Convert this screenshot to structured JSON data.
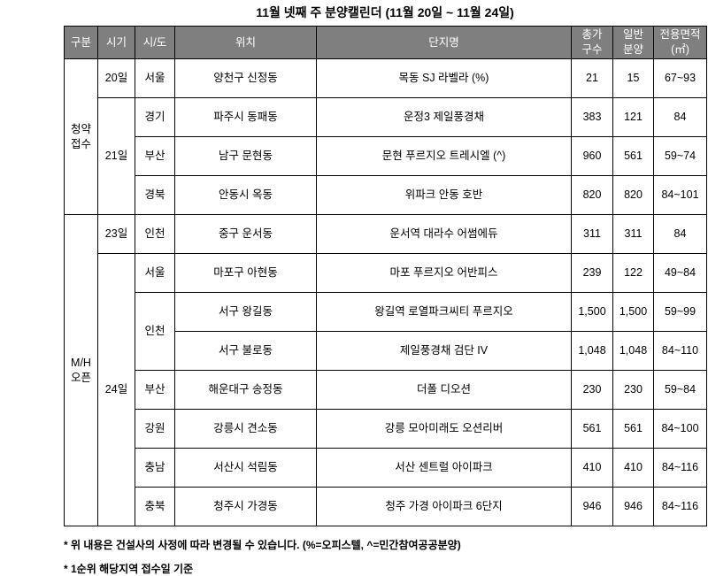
{
  "title": "11월 넷째 주 분양캘린더 (11월 20일 ~ 11월 24일)",
  "colors": {
    "header_bg": "#7f7f7f",
    "header_text": "#ffffff",
    "border": "#000000"
  },
  "table": {
    "headers": [
      "구분",
      "시기",
      "시/도",
      "위치",
      "단지명",
      "총가\n구수",
      "일반\n분양",
      "전용면적\n(㎡)"
    ],
    "rows": [
      [
        {
          "text": "청약\n접수",
          "rowspan": 4,
          "name": "group-cell-subscription"
        },
        {
          "text": "20일",
          "rowspan": 1,
          "name": "date-cell"
        },
        {
          "text": "서울"
        },
        {
          "text": "양천구 신정동"
        },
        {
          "text": "목동 SJ 라벨라 (%)"
        },
        {
          "text": "21"
        },
        {
          "text": "15"
        },
        {
          "text": "67~93"
        }
      ],
      [
        {
          "text": "21일",
          "rowspan": 3,
          "name": "date-cell"
        },
        {
          "text": "경기"
        },
        {
          "text": "파주시 동패동"
        },
        {
          "text": "운정3 제일풍경채"
        },
        {
          "text": "383"
        },
        {
          "text": "121"
        },
        {
          "text": "84"
        }
      ],
      [
        {
          "text": "부산"
        },
        {
          "text": "남구 문현동"
        },
        {
          "text": "문현 푸르지오 트레시엘 (^)"
        },
        {
          "text": "960"
        },
        {
          "text": "561"
        },
        {
          "text": "59~74"
        }
      ],
      [
        {
          "text": "경북"
        },
        {
          "text": "안동시 옥동"
        },
        {
          "text": "위파크 안동 호반"
        },
        {
          "text": "820"
        },
        {
          "text": "820"
        },
        {
          "text": "84~101"
        }
      ],
      [
        {
          "text": "M/H\n오픈",
          "rowspan": 8,
          "name": "group-cell-mh-open"
        },
        {
          "text": "23일",
          "rowspan": 1,
          "name": "date-cell"
        },
        {
          "text": "인천"
        },
        {
          "text": "중구 운서동"
        },
        {
          "text": "운서역 대라수 어썸에듀"
        },
        {
          "text": "311"
        },
        {
          "text": "311"
        },
        {
          "text": "84"
        }
      ],
      [
        {
          "text": "24일",
          "rowspan": 7,
          "name": "date-cell"
        },
        {
          "text": "서울"
        },
        {
          "text": "마포구 아현동"
        },
        {
          "text": "마포 푸르지오 어반피스"
        },
        {
          "text": "239"
        },
        {
          "text": "122"
        },
        {
          "text": "49~84"
        }
      ],
      [
        {
          "text": "인천",
          "rowspan": 2,
          "name": "region-cell"
        },
        {
          "text": "서구 왕길동"
        },
        {
          "text": "왕길역 로열파크씨티 푸르지오"
        },
        {
          "text": "1,500"
        },
        {
          "text": "1,500"
        },
        {
          "text": "59~99"
        }
      ],
      [
        {
          "text": "서구 불로동"
        },
        {
          "text": "제일풍경채 검단 IV"
        },
        {
          "text": "1,048"
        },
        {
          "text": "1,048"
        },
        {
          "text": "84~110"
        }
      ],
      [
        {
          "text": "부산"
        },
        {
          "text": "해운대구 송정동"
        },
        {
          "text": "더폴 디오션"
        },
        {
          "text": "230"
        },
        {
          "text": "230"
        },
        {
          "text": "59~84"
        }
      ],
      [
        {
          "text": "강원"
        },
        {
          "text": "강릉시 견소동"
        },
        {
          "text": "강릉 모아미래도 오션리버"
        },
        {
          "text": "561"
        },
        {
          "text": "561"
        },
        {
          "text": "84~100"
        }
      ],
      [
        {
          "text": "충남"
        },
        {
          "text": "서산시 석림동"
        },
        {
          "text": "서산 센트럴 아이파크"
        },
        {
          "text": "410"
        },
        {
          "text": "410"
        },
        {
          "text": "84~116"
        }
      ],
      [
        {
          "text": "충북"
        },
        {
          "text": "청주시 가경동"
        },
        {
          "text": "청주 가경 아이파크 6단지"
        },
        {
          "text": "946"
        },
        {
          "text": "946"
        },
        {
          "text": "84~116"
        }
      ]
    ]
  },
  "footnotes": [
    "* 위 내용은 건설사의 사정에 따라 변경될 수 있습니다. (%=오피스텔, ^=민간참여공공분양)",
    "* 1순위 해당지역 접수일 기준"
  ]
}
